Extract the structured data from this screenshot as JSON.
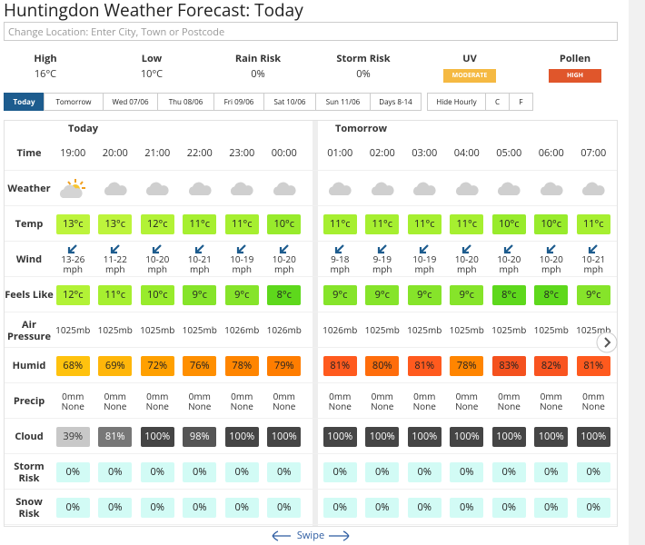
{
  "header": {
    "title": "Huntingdon Weather Forecast: Today",
    "search_placeholder": "Change Location: Enter City, Town or Postcode"
  },
  "summary": [
    {
      "label": "High",
      "value": "16°C"
    },
    {
      "label": "Low",
      "value": "10°C"
    },
    {
      "label": "Rain Risk",
      "value": "0%"
    },
    {
      "label": "Storm Risk",
      "value": "0%"
    },
    {
      "label": "UV",
      "value": "MODERATE",
      "color": "#f5b942"
    },
    {
      "label": "Pollen",
      "value": "HIGH",
      "color": "#e0562b"
    }
  ],
  "tabs": [
    {
      "label": "Today",
      "active": true
    },
    {
      "label": "Tomorrow"
    },
    {
      "label": "Wed 07/06"
    },
    {
      "label": "Thu 08/06"
    },
    {
      "label": "Fri 09/06"
    },
    {
      "label": "Sat 10/06"
    },
    {
      "label": "Sun 11/06"
    },
    {
      "label": "Days 8-14"
    }
  ],
  "options": [
    "Hide Hourly",
    "C",
    "F"
  ],
  "row_labels": [
    "Time",
    "Weather",
    "Temp",
    "Wind",
    "Feels Like",
    "Air Pressure",
    "Humid",
    "Precip",
    "Cloud",
    "Storm Risk",
    "Snow Risk"
  ],
  "days": [
    {
      "label": "Today",
      "hours": [
        {
          "time": "19:00",
          "icon": "sun-cloud",
          "temp": "13°c",
          "temp_color": "#bdf43c",
          "wind": "13-26 mph",
          "feels": "12°c",
          "feels_color": "#b2f236",
          "pressure": "1025mb",
          "humid": "68%",
          "humid_color": "#ffc20e",
          "precip": "0mm None",
          "cloud": "39%",
          "cloud_color": "#c8c8c8",
          "cloud_text_color": "#333",
          "storm": "0%",
          "snow": "0%"
        },
        {
          "time": "20:00",
          "icon": "cloud",
          "temp": "13°c",
          "temp_color": "#bdf43c",
          "wind": "11-22 mph",
          "feels": "11°c",
          "feels_color": "#a6ef30",
          "pressure": "1025mb",
          "humid": "69%",
          "humid_color": "#ffb60a",
          "precip": "0mm None",
          "cloud": "81%",
          "cloud_color": "#777777",
          "cloud_text_color": "#fff",
          "storm": "0%",
          "snow": "0%"
        },
        {
          "time": "21:00",
          "icon": "cloud",
          "temp": "12°c",
          "temp_color": "#b2f236",
          "wind": "10-20 mph",
          "feels": "10°c",
          "feels_color": "#98eb2c",
          "pressure": "1025mb",
          "humid": "72%",
          "humid_color": "#ffa000",
          "precip": "0mm None",
          "cloud": "100%",
          "cloud_color": "#454545",
          "cloud_text_color": "#fff",
          "storm": "0%",
          "snow": "0%"
        },
        {
          "time": "22:00",
          "icon": "cloud",
          "temp": "11°c",
          "temp_color": "#a6ef30",
          "wind": "10-21 mph",
          "feels": "9°c",
          "feels_color": "#86e42a",
          "pressure": "1025mb",
          "humid": "76%",
          "humid_color": "#ff8f00",
          "precip": "0mm None",
          "cloud": "98%",
          "cloud_color": "#555555",
          "cloud_text_color": "#fff",
          "storm": "0%",
          "snow": "0%"
        },
        {
          "time": "23:00",
          "icon": "cloud",
          "temp": "11°c",
          "temp_color": "#a6ef30",
          "wind": "10-19 mph",
          "feels": "9°c",
          "feels_color": "#86e42a",
          "pressure": "1026mb",
          "humid": "78%",
          "humid_color": "#ff8500",
          "precip": "0mm None",
          "cloud": "100%",
          "cloud_color": "#454545",
          "cloud_text_color": "#fff",
          "storm": "0%",
          "snow": "0%"
        },
        {
          "time": "00:00",
          "icon": "cloud",
          "temp": "10°c",
          "temp_color": "#98eb2c",
          "wind": "10-20 mph",
          "feels": "8°c",
          "feels_color": "#5ed81c",
          "pressure": "1026mb",
          "humid": "79%",
          "humid_color": "#ff7d00",
          "precip": "0mm None",
          "cloud": "100%",
          "cloud_color": "#454545",
          "cloud_text_color": "#fff",
          "storm": "0%",
          "snow": "0%"
        }
      ]
    },
    {
      "label": "Tomorrow",
      "hours": [
        {
          "time": "01:00",
          "icon": "cloud",
          "temp": "11°c",
          "temp_color": "#a6ef30",
          "wind": "9-18 mph",
          "feels": "9°c",
          "feels_color": "#86e42a",
          "pressure": "1026mb",
          "humid": "81%",
          "humid_color": "#ff5a1e",
          "precip": "0mm None",
          "cloud": "100%",
          "cloud_color": "#454545",
          "cloud_text_color": "#fff",
          "storm": "0%",
          "snow": "0%"
        },
        {
          "time": "02:00",
          "icon": "cloud",
          "temp": "11°c",
          "temp_color": "#a6ef30",
          "wind": "9-19 mph",
          "feels": "9°c",
          "feels_color": "#86e42a",
          "pressure": "1025mb",
          "humid": "80%",
          "humid_color": "#ff6d0c",
          "precip": "0mm None",
          "cloud": "100%",
          "cloud_color": "#454545",
          "cloud_text_color": "#fff",
          "storm": "0%",
          "snow": "0%"
        },
        {
          "time": "03:00",
          "icon": "cloud",
          "temp": "11°c",
          "temp_color": "#a6ef30",
          "wind": "10-19 mph",
          "feels": "9°c",
          "feels_color": "#86e42a",
          "pressure": "1025mb",
          "humid": "81%",
          "humid_color": "#ff5a1e",
          "precip": "0mm None",
          "cloud": "100%",
          "cloud_color": "#454545",
          "cloud_text_color": "#fff",
          "storm": "0%",
          "snow": "0%"
        },
        {
          "time": "04:00",
          "icon": "cloud",
          "temp": "11°c",
          "temp_color": "#a6ef30",
          "wind": "10-20 mph",
          "feels": "9°c",
          "feels_color": "#86e42a",
          "pressure": "1025mb",
          "humid": "78%",
          "humid_color": "#ff8500",
          "precip": "0mm None",
          "cloud": "100%",
          "cloud_color": "#454545",
          "cloud_text_color": "#fff",
          "storm": "0%",
          "snow": "0%"
        },
        {
          "time": "05:00",
          "icon": "cloud",
          "temp": "10°c",
          "temp_color": "#98eb2c",
          "wind": "10-20 mph",
          "feels": "8°c",
          "feels_color": "#5ed81c",
          "pressure": "1025mb",
          "humid": "83%",
          "humid_color": "#f4511e",
          "precip": "0mm None",
          "cloud": "100%",
          "cloud_color": "#454545",
          "cloud_text_color": "#fff",
          "storm": "0%",
          "snow": "0%"
        },
        {
          "time": "06:00",
          "icon": "cloud",
          "temp": "10°c",
          "temp_color": "#98eb2c",
          "wind": "10-20 mph",
          "feels": "8°c",
          "feels_color": "#5ed81c",
          "pressure": "1025mb",
          "humid": "82%",
          "humid_color": "#f95420",
          "precip": "0mm None",
          "cloud": "100%",
          "cloud_color": "#454545",
          "cloud_text_color": "#fff",
          "storm": "0%",
          "snow": "0%"
        },
        {
          "time": "07:00",
          "icon": "cloud",
          "temp": "11°c",
          "temp_color": "#a6ef30",
          "wind": "10-21 mph",
          "feels": "9°c",
          "feels_color": "#86e42a",
          "pressure": "1025mb",
          "humid": "81%",
          "humid_color": "#ff5a1e",
          "precip": "0mm None",
          "cloud": "100%",
          "cloud_color": "#454545",
          "cloud_text_color": "#fff",
          "storm": "0%",
          "snow": "0%"
        }
      ]
    }
  ],
  "swipe": "Swipe"
}
